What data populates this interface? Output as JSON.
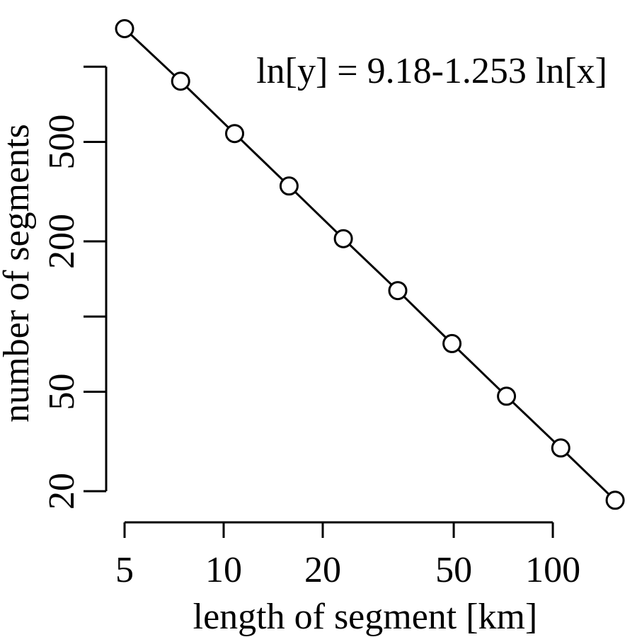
{
  "chart_data": {
    "type": "line",
    "title": "",
    "xlabel": "length of segment [km]",
    "ylabel": "number of segments",
    "x_scale": "log",
    "y_scale": "log",
    "xlim": [
      5,
      150
    ],
    "ylim": [
      20,
      1100
    ],
    "x_ticks": [
      5,
      10,
      20,
      50,
      100
    ],
    "x_tick_labels": [
      "5",
      "10",
      "20",
      "50",
      "100"
    ],
    "y_ticks": [
      20,
      50,
      100,
      200,
      500,
      1000
    ],
    "y_tick_labels": [
      "20",
      "50",
      "",
      "200",
      "500",
      ""
    ],
    "series": [
      {
        "x": [
          5,
          7.4,
          10.8,
          15.8,
          23.1,
          33.8,
          49.4,
          72.3,
          105.7,
          154.6
        ],
        "y": [
          1420,
          875,
          540,
          333,
          205,
          127,
          78,
          48,
          29.8,
          18.4
        ],
        "marker": "open-circle",
        "line": "solid"
      }
    ],
    "annotations": [
      {
        "text": "ln[y] = 9.18-1.253 ln[x]"
      }
    ],
    "grid": false,
    "legend": "none",
    "colors": {
      "line": "#000000",
      "marker_fill": "#ffffff",
      "background": "#ffffff"
    }
  }
}
